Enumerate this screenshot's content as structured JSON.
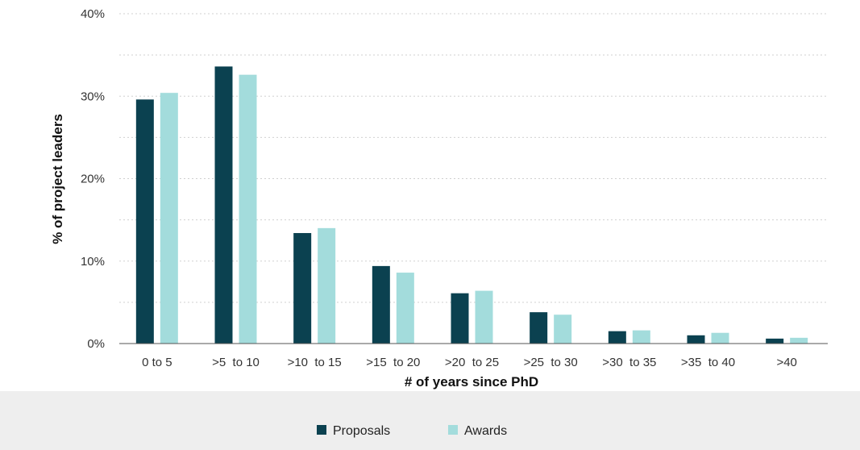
{
  "chart_data": {
    "type": "bar",
    "title": "",
    "xlabel": "# of years since PhD",
    "ylabel": "% of project leaders",
    "categories": [
      ">0 to 5",
      ">5 to 10",
      ">10 to 15",
      ">15 to 20",
      ">20 to 25",
      ">25 to 30",
      ">30 to 35",
      ">35 to 40",
      ">40"
    ],
    "category_labels": [
      "0 to 5",
      ">5  to 10",
      ">10  to 15",
      ">15  to 20",
      ">20  to 25",
      ">25  to 30",
      ">30  to 35",
      ">35  to 40",
      ">40"
    ],
    "series": [
      {
        "name": "Proposals",
        "color": "#0b4150",
        "values": [
          29.6,
          33.6,
          13.4,
          9.4,
          6.1,
          3.8,
          1.5,
          1.0,
          0.6
        ]
      },
      {
        "name": "Awards",
        "color": "#a3dcdc",
        "values": [
          30.4,
          32.6,
          14.0,
          8.6,
          6.4,
          3.5,
          1.6,
          1.3,
          0.7
        ]
      }
    ],
    "y_ticks": [
      0,
      10,
      20,
      30,
      40
    ],
    "y_tick_labels": [
      "0%",
      "10%",
      "20%",
      "30%",
      "40%"
    ],
    "ylim": [
      0,
      40
    ],
    "grid": "horizontal-dotted",
    "legend_position": "bottom"
  },
  "colors": {
    "legend_band": "#eeeeee",
    "grid": "#d0d0d0",
    "axis": "#555555"
  }
}
